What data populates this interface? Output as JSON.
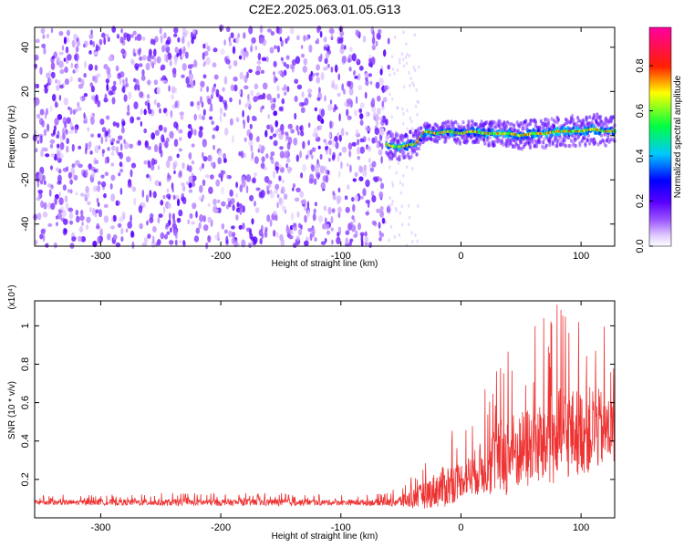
{
  "title": "C2E2.2025.063.01.05.G13",
  "chart_data": [
    {
      "type": "heatmap",
      "xlabel": "Height of straight line (km)",
      "ylabel": "Frequency (Hz)",
      "xlim": [
        -355,
        128
      ],
      "ylim": [
        -50,
        49
      ],
      "xticks": [
        -300,
        -200,
        -100,
        0,
        100
      ],
      "yticks": [
        -40,
        -20,
        0,
        20,
        40
      ],
      "xtick_labels": [
        "-300",
        "-200",
        "-100",
        "0",
        "100"
      ],
      "ytick_labels": [
        "-40",
        "-20",
        "0",
        "20",
        "40"
      ],
      "colorbar": {
        "label": "Normalized spectral amplitude",
        "range": [
          0,
          0.97
        ],
        "ticks": [
          0,
          0.2,
          0.4,
          0.6,
          0.8
        ],
        "tick_labels": [
          "0.0",
          "0.2",
          "0.4",
          "0.6",
          "0.8"
        ],
        "colormap": "rainbow (white-purple-blue-cyan-green-yellow-red-magenta)"
      },
      "features": {
        "noise_region_x": [
          -355,
          -60
        ],
        "noise_amplitude": [
          0.0,
          0.2
        ],
        "signal_start_x": -62,
        "signal_track": [
          {
            "x": -62,
            "f": -4
          },
          {
            "x": -55,
            "f": -5
          },
          {
            "x": -48,
            "f": -5
          },
          {
            "x": -42,
            "f": -4
          },
          {
            "x": -38,
            "f": -4
          },
          {
            "x": -34,
            "f": -1
          },
          {
            "x": -30,
            "f": 2
          },
          {
            "x": -20,
            "f": 1
          },
          {
            "x": -10,
            "f": 2
          },
          {
            "x": 0,
            "f": 1
          },
          {
            "x": 10,
            "f": 2
          },
          {
            "x": 20,
            "f": 1
          },
          {
            "x": 30,
            "f": 1
          },
          {
            "x": 40,
            "f": 1
          },
          {
            "x": 50,
            "f": 0
          },
          {
            "x": 60,
            "f": 1
          },
          {
            "x": 70,
            "f": 1
          },
          {
            "x": 80,
            "f": 2
          },
          {
            "x": 90,
            "f": 2
          },
          {
            "x": 100,
            "f": 2
          },
          {
            "x": 110,
            "f": 3
          },
          {
            "x": 120,
            "f": 2
          },
          {
            "x": 128,
            "f": 2
          }
        ]
      }
    },
    {
      "type": "line",
      "xlabel": "Height of straight line (km)",
      "ylabel": "SNR (10 * v/v)",
      "y_multiplier": "(x10⁴)",
      "xlim": [
        -355,
        128
      ],
      "ylim": [
        0,
        1.13
      ],
      "xticks": [
        -300,
        -200,
        -100,
        0,
        100
      ],
      "yticks": [
        0.2,
        0.4,
        0.6,
        0.8,
        1
      ],
      "xtick_labels": [
        "-300",
        "-200",
        "-100",
        "0",
        "100"
      ],
      "ytick_labels": [
        "0.2",
        "0.4",
        "0.6",
        "0.8",
        "1"
      ],
      "color": "#ee3333",
      "series": [
        {
          "x": [
            -355,
            -300,
            -250,
            -200,
            -150,
            -100,
            -60,
            -45,
            -30,
            -20,
            -10,
            0,
            10,
            20,
            30,
            40,
            50,
            60,
            70,
            80,
            90,
            100,
            110,
            120,
            128
          ],
          "y_mean": [
            0.08,
            0.08,
            0.08,
            0.08,
            0.08,
            0.08,
            0.08,
            0.09,
            0.12,
            0.15,
            0.17,
            0.2,
            0.23,
            0.27,
            0.3,
            0.33,
            0.35,
            0.37,
            0.39,
            0.42,
            0.44,
            0.45,
            0.46,
            0.46,
            0.45
          ],
          "y_peak": [
            0.12,
            0.12,
            0.13,
            0.13,
            0.13,
            0.12,
            0.13,
            0.2,
            0.32,
            0.42,
            0.5,
            0.45,
            0.55,
            0.7,
            0.85,
            0.95,
            0.92,
            1.0,
            1.05,
            1.13,
            1.1,
            1.08,
            1.1,
            1.0,
            0.95
          ]
        }
      ]
    }
  ]
}
